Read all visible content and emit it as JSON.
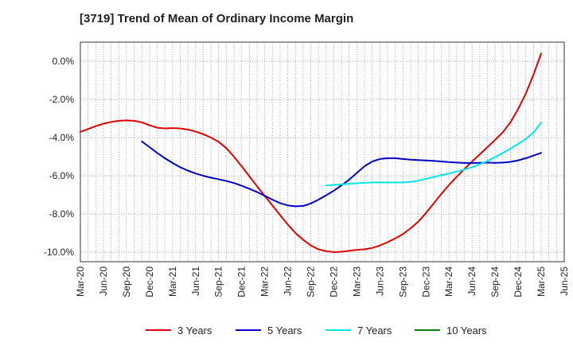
{
  "title": "[3719]  Trend of Mean of Ordinary Income Margin",
  "chart_data": {
    "type": "line",
    "title": "[3719]  Trend of Mean of Ordinary Income Margin",
    "xlabel": "",
    "ylabel": "",
    "x_ticks": [
      "Mar-20",
      "Jun-20",
      "Sep-20",
      "Dec-20",
      "Mar-21",
      "Jun-21",
      "Sep-21",
      "Dec-21",
      "Mar-22",
      "Jun-22",
      "Sep-22",
      "Dec-22",
      "Mar-23",
      "Jun-23",
      "Sep-23",
      "Dec-23",
      "Mar-24",
      "Jun-24",
      "Sep-24",
      "Dec-24",
      "Mar-25",
      "Jun-25"
    ],
    "y_ticks": [
      "0.0%",
      "-2.0%",
      "-4.0%",
      "-6.0%",
      "-8.0%",
      "-10.0%"
    ],
    "y_tick_values": [
      0,
      -2,
      -4,
      -6,
      -8,
      -10
    ],
    "ylim": [
      -10.5,
      1.0
    ],
    "grid": true,
    "legend_position": "bottom",
    "series": [
      {
        "name": "3 Years",
        "color": "#e00000",
        "x": [
          "Mar-20",
          "Apr-20",
          "May-20",
          "Jun-20",
          "Jul-20",
          "Aug-20",
          "Sep-20",
          "Oct-20",
          "Nov-20",
          "Dec-20",
          "Jan-21",
          "Feb-21",
          "Mar-21",
          "Apr-21",
          "May-21",
          "Jun-21",
          "Jul-21",
          "Aug-21",
          "Sep-21",
          "Oct-21",
          "Nov-21",
          "Dec-21",
          "Jan-22",
          "Feb-22",
          "Mar-22",
          "Apr-22",
          "May-22",
          "Jun-22",
          "Jul-22",
          "Aug-22",
          "Sep-22",
          "Oct-22",
          "Nov-22",
          "Dec-22",
          "Jan-23",
          "Feb-23",
          "Mar-23",
          "Apr-23",
          "May-23",
          "Jun-23",
          "Jul-23",
          "Aug-23",
          "Sep-23",
          "Oct-23",
          "Nov-23",
          "Dec-23",
          "Jan-24",
          "Feb-24",
          "Mar-24",
          "Apr-24",
          "May-24",
          "Jun-24",
          "Jul-24",
          "Aug-24",
          "Sep-24",
          "Oct-24",
          "Nov-24",
          "Dec-24",
          "Jan-25",
          "Feb-25",
          "Mar-25"
        ],
        "values": [
          -3.7,
          -3.55,
          -3.4,
          -3.27,
          -3.18,
          -3.12,
          -3.1,
          -3.12,
          -3.2,
          -3.35,
          -3.48,
          -3.52,
          -3.5,
          -3.52,
          -3.58,
          -3.68,
          -3.82,
          -4.0,
          -4.22,
          -4.55,
          -5.0,
          -5.5,
          -6.02,
          -6.55,
          -7.05,
          -7.55,
          -8.05,
          -8.55,
          -9.0,
          -9.35,
          -9.65,
          -9.85,
          -9.95,
          -10.0,
          -9.98,
          -9.93,
          -9.88,
          -9.85,
          -9.78,
          -9.65,
          -9.48,
          -9.28,
          -9.05,
          -8.75,
          -8.4,
          -7.95,
          -7.45,
          -6.95,
          -6.48,
          -6.05,
          -5.65,
          -5.25,
          -4.88,
          -4.5,
          -4.12,
          -3.72,
          -3.2,
          -2.5,
          -1.7,
          -0.7,
          0.4
        ]
      },
      {
        "name": "5 Years",
        "color": "#0000c8",
        "x": [
          "Nov-20",
          "Dec-20",
          "Jan-21",
          "Feb-21",
          "Mar-21",
          "Apr-21",
          "May-21",
          "Jun-21",
          "Jul-21",
          "Aug-21",
          "Sep-21",
          "Oct-21",
          "Nov-21",
          "Dec-21",
          "Jan-22",
          "Feb-22",
          "Mar-22",
          "Apr-22",
          "May-22",
          "Jun-22",
          "Jul-22",
          "Aug-22",
          "Sep-22",
          "Oct-22",
          "Nov-22",
          "Dec-22",
          "Jan-23",
          "Feb-23",
          "Mar-23",
          "Apr-23",
          "May-23",
          "Jun-23",
          "Jul-23",
          "Aug-23",
          "Sep-23",
          "Oct-23",
          "Nov-23",
          "Dec-23",
          "Jan-24",
          "Feb-24",
          "Mar-24",
          "Apr-24",
          "May-24",
          "Jun-24",
          "Jul-24",
          "Aug-24",
          "Sep-24",
          "Oct-24",
          "Nov-24",
          "Dec-24",
          "Jan-25",
          "Feb-25",
          "Mar-25"
        ],
        "values": [
          -4.2,
          -4.5,
          -4.8,
          -5.08,
          -5.33,
          -5.55,
          -5.73,
          -5.88,
          -6.0,
          -6.1,
          -6.18,
          -6.27,
          -6.38,
          -6.52,
          -6.68,
          -6.85,
          -7.05,
          -7.25,
          -7.43,
          -7.55,
          -7.6,
          -7.58,
          -7.45,
          -7.25,
          -7.02,
          -6.78,
          -6.5,
          -6.2,
          -5.85,
          -5.5,
          -5.25,
          -5.12,
          -5.08,
          -5.08,
          -5.12,
          -5.16,
          -5.18,
          -5.2,
          -5.22,
          -5.25,
          -5.28,
          -5.31,
          -5.33,
          -5.33,
          -5.32,
          -5.31,
          -5.32,
          -5.31,
          -5.27,
          -5.19,
          -5.08,
          -4.94,
          -4.8
        ]
      },
      {
        "name": "7 Years",
        "color": "#00e8e8",
        "x": [
          "Nov-22",
          "Dec-22",
          "Jan-23",
          "Feb-23",
          "Mar-23",
          "Apr-23",
          "May-23",
          "Jun-23",
          "Jul-23",
          "Aug-23",
          "Sep-23",
          "Oct-23",
          "Nov-23",
          "Dec-23",
          "Jan-24",
          "Feb-24",
          "Mar-24",
          "Apr-24",
          "May-24",
          "Jun-24",
          "Jul-24",
          "Aug-24",
          "Sep-24",
          "Oct-24",
          "Nov-24",
          "Dec-24",
          "Jan-25",
          "Feb-25",
          "Mar-25"
        ],
        "values": [
          -6.5,
          -6.48,
          -6.45,
          -6.42,
          -6.39,
          -6.37,
          -6.35,
          -6.35,
          -6.35,
          -6.35,
          -6.35,
          -6.32,
          -6.25,
          -6.16,
          -6.07,
          -5.97,
          -5.88,
          -5.78,
          -5.67,
          -5.55,
          -5.4,
          -5.22,
          -5.02,
          -4.8,
          -4.58,
          -4.33,
          -4.07,
          -3.73,
          -3.22
        ]
      },
      {
        "name": "10 Years",
        "color": "#008000",
        "x": [],
        "values": []
      }
    ]
  }
}
